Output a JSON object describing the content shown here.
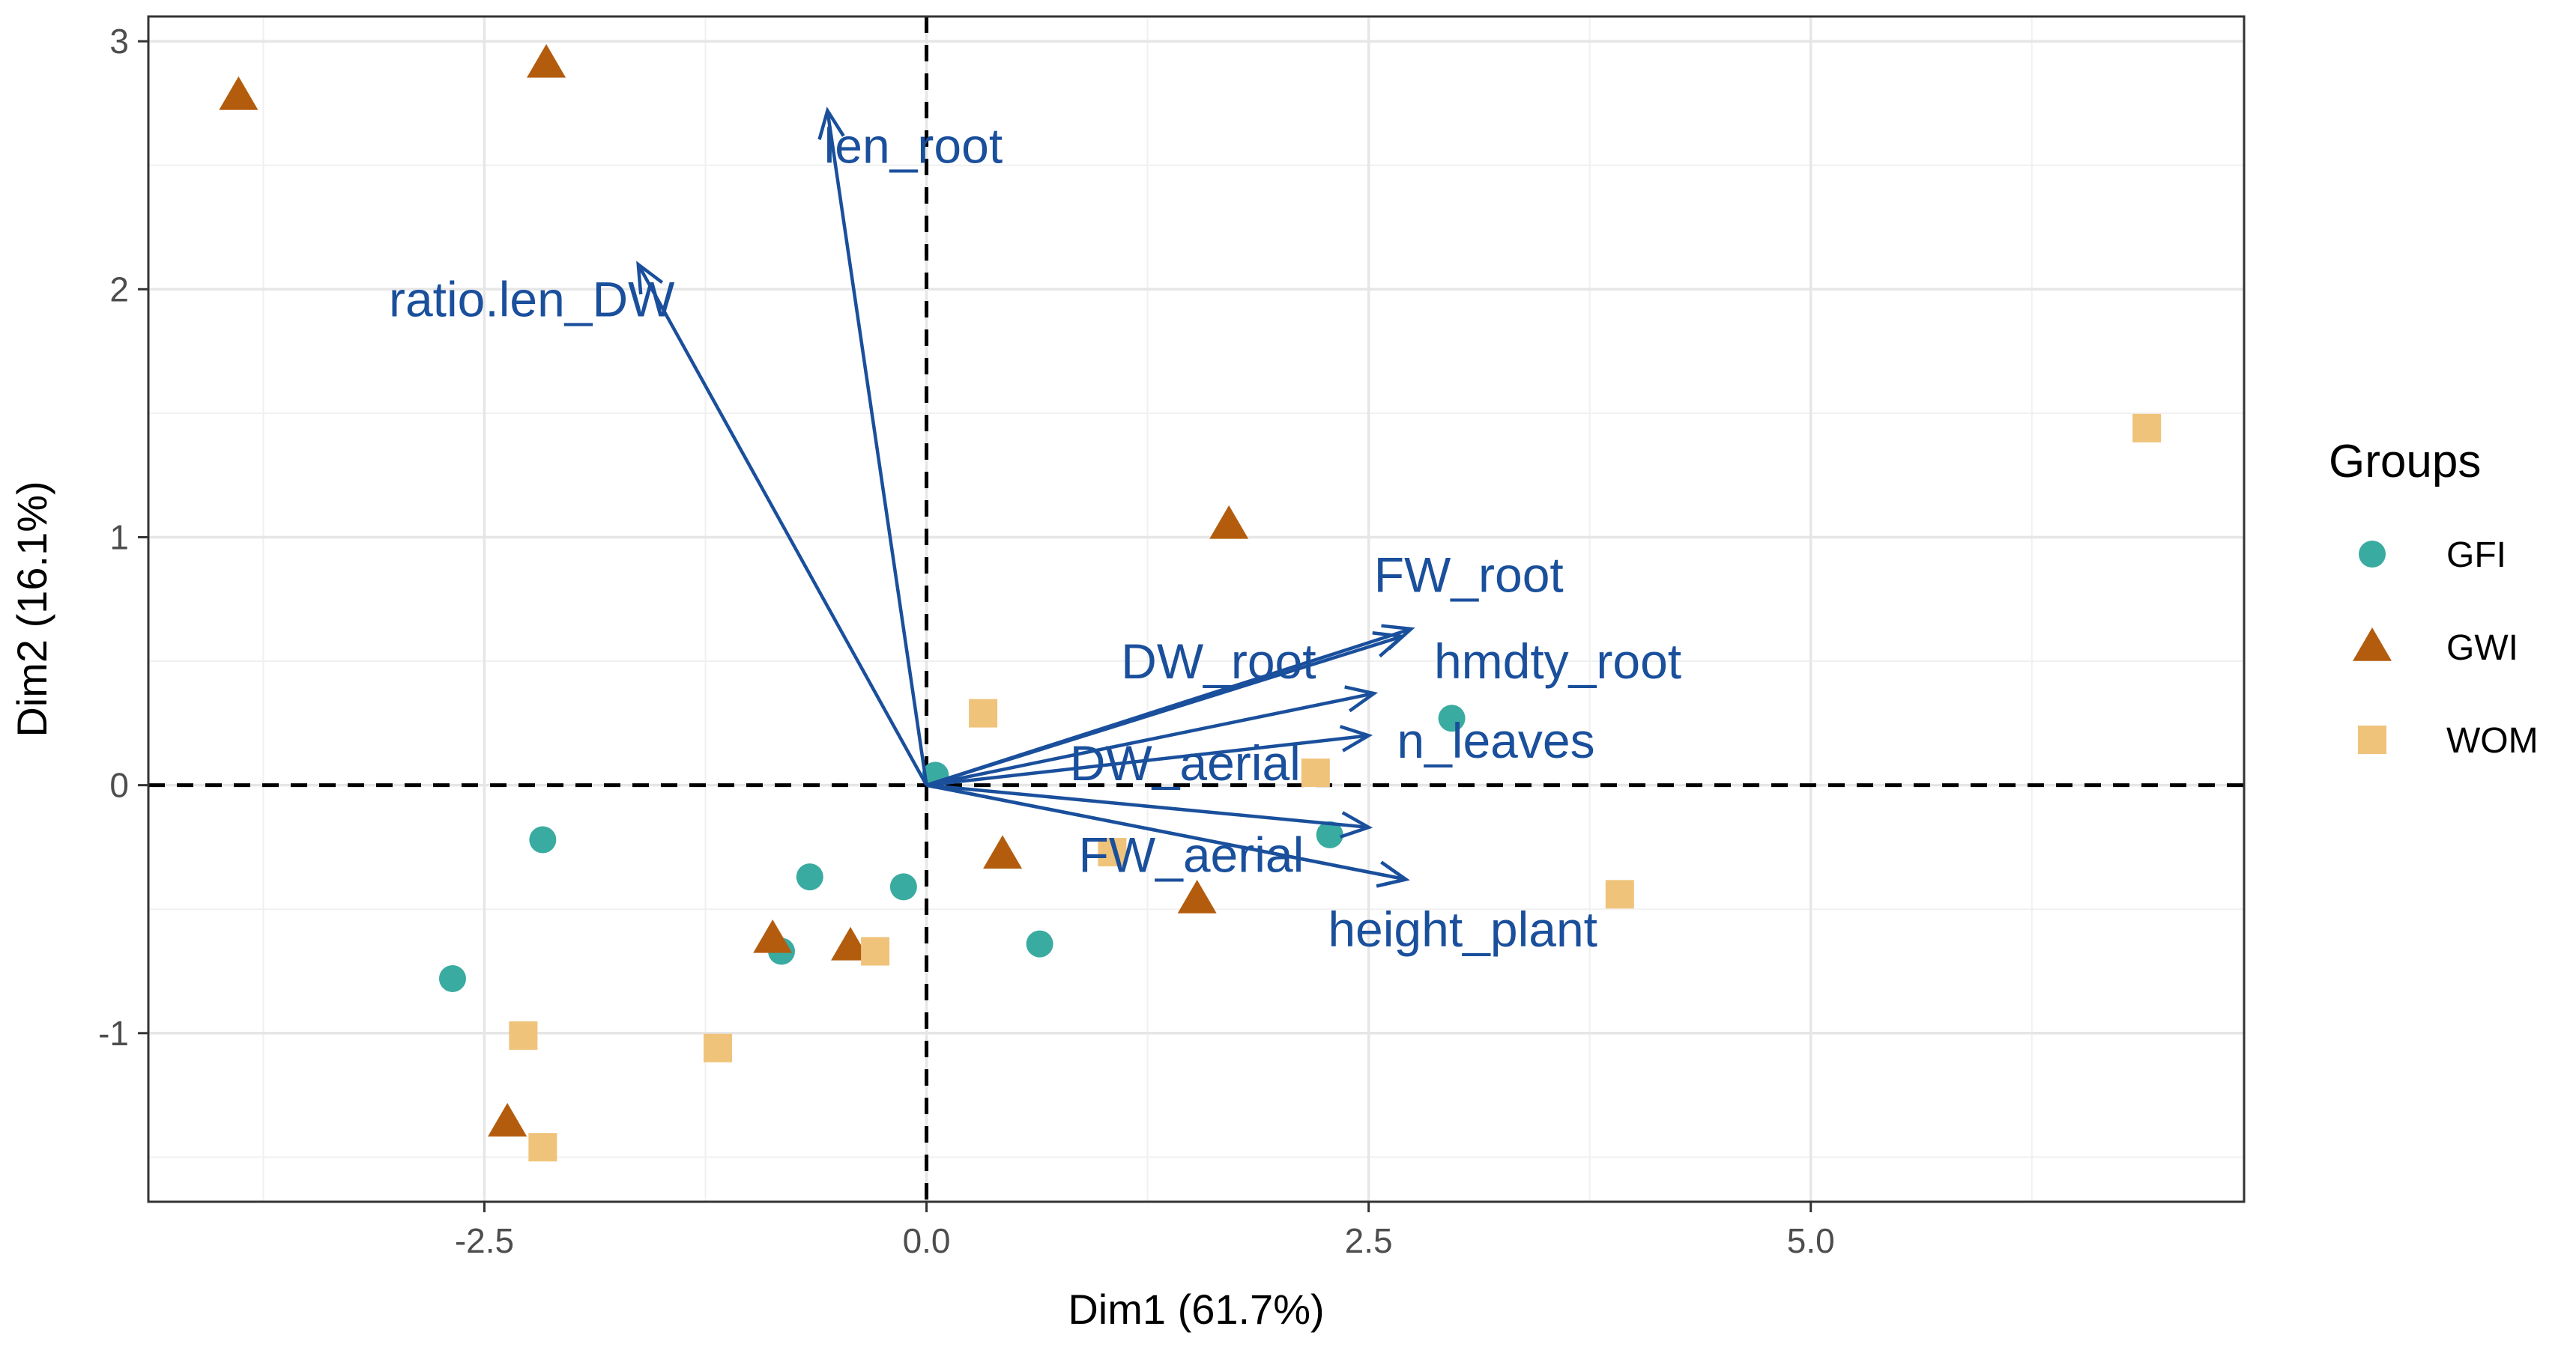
{
  "chart_data": {
    "type": "scatter",
    "subtype": "pca-biplot",
    "xlabel": "Dim1 (61.7%)",
    "ylabel": "Dim2 (16.1%)",
    "xlim": [
      -4.4,
      7.45
    ],
    "ylim": [
      -1.68,
      3.1
    ],
    "x_ticks": [
      {
        "value": -2.5,
        "label": "-2.5"
      },
      {
        "value": 0.0,
        "label": "0.0"
      },
      {
        "value": 2.5,
        "label": "2.5"
      },
      {
        "value": 5.0,
        "label": "5.0"
      }
    ],
    "y_ticks": [
      {
        "value": -1,
        "label": "-1"
      },
      {
        "value": 0,
        "label": "0"
      },
      {
        "value": 1,
        "label": "1"
      },
      {
        "value": 2,
        "label": "2"
      },
      {
        "value": 3,
        "label": "3"
      }
    ],
    "grid": true,
    "reference_lines": {
      "x": 0,
      "y": 0,
      "style": "dashed"
    },
    "legend": {
      "title": "Groups",
      "position": "right",
      "entries": [
        {
          "name": "GFI",
          "shape": "circle",
          "color": "#3aaba0"
        },
        {
          "name": "GWI",
          "shape": "triangle",
          "color": "#b35c0e"
        },
        {
          "name": "WOM",
          "shape": "square",
          "color": "#efc37a"
        }
      ]
    },
    "series": [
      {
        "name": "GFI",
        "shape": "circle",
        "color": "#3aaba0",
        "points": [
          {
            "x": -2.68,
            "y": -0.78
          },
          {
            "x": -2.17,
            "y": -0.22
          },
          {
            "x": -0.66,
            "y": -0.37
          },
          {
            "x": -0.82,
            "y": -0.67
          },
          {
            "x": -0.13,
            "y": -0.41
          },
          {
            "x": 0.05,
            "y": 0.04
          },
          {
            "x": 0.64,
            "y": -0.64
          },
          {
            "x": 2.28,
            "y": -0.2
          },
          {
            "x": 2.97,
            "y": 0.27
          }
        ]
      },
      {
        "name": "GWI",
        "shape": "triangle",
        "color": "#b35c0e",
        "points": [
          {
            "x": -3.89,
            "y": 2.78
          },
          {
            "x": -2.15,
            "y": 2.91
          },
          {
            "x": -2.37,
            "y": -1.36
          },
          {
            "x": -0.87,
            "y": -0.62
          },
          {
            "x": -0.43,
            "y": -0.65
          },
          {
            "x": 0.43,
            "y": -0.28
          },
          {
            "x": 1.53,
            "y": -0.46
          },
          {
            "x": 1.71,
            "y": 1.05
          }
        ]
      },
      {
        "name": "WOM",
        "shape": "square",
        "color": "#efc37a",
        "points": [
          {
            "x": -2.28,
            "y": -1.01
          },
          {
            "x": -2.17,
            "y": -1.46
          },
          {
            "x": -1.18,
            "y": -1.06
          },
          {
            "x": -0.29,
            "y": -0.67
          },
          {
            "x": 0.32,
            "y": 0.29
          },
          {
            "x": 1.05,
            "y": -0.27
          },
          {
            "x": 2.2,
            "y": 0.05
          },
          {
            "x": 3.92,
            "y": -0.44
          },
          {
            "x": 6.9,
            "y": 1.44
          }
        ]
      }
    ],
    "variable_arrows": {
      "color": "#1a4f9c",
      "vectors": [
        {
          "name": "len_root",
          "x": -0.56,
          "y": 2.72,
          "label_x": -0.58,
          "label_y": 2.51,
          "anchor": "start"
        },
        {
          "name": "ratio.len_DW",
          "x": -1.63,
          "y": 2.1,
          "label_x": -3.04,
          "label_y": 1.89,
          "anchor": "start"
        },
        {
          "name": "FW_root",
          "x": 2.74,
          "y": 0.63,
          "label_x": 2.53,
          "label_y": 0.78,
          "anchor": "start"
        },
        {
          "name": "DW_root",
          "x": 2.69,
          "y": 0.6,
          "label_x": 1.1,
          "label_y": 0.43,
          "anchor": "start"
        },
        {
          "name": "hmdty_root",
          "x": 2.53,
          "y": 0.37,
          "label_x": 2.87,
          "label_y": 0.43,
          "anchor": "start"
        },
        {
          "name": "n_leaves",
          "x": 2.5,
          "y": 0.2,
          "label_x": 2.66,
          "label_y": 0.11,
          "anchor": "start"
        },
        {
          "name": "DW_aerial",
          "x": 2.5,
          "y": -0.17,
          "label_x": 0.81,
          "label_y": 0.02,
          "anchor": "start"
        },
        {
          "name": "FW_aerial",
          "x": 2.71,
          "y": -0.38,
          "label_x": 0.86,
          "label_y": -0.35,
          "anchor": "start"
        },
        {
          "name": "height_plant",
          "x": 2.71,
          "y": -0.38,
          "label_x": 2.27,
          "label_y": -0.65,
          "anchor": "start"
        }
      ]
    }
  }
}
